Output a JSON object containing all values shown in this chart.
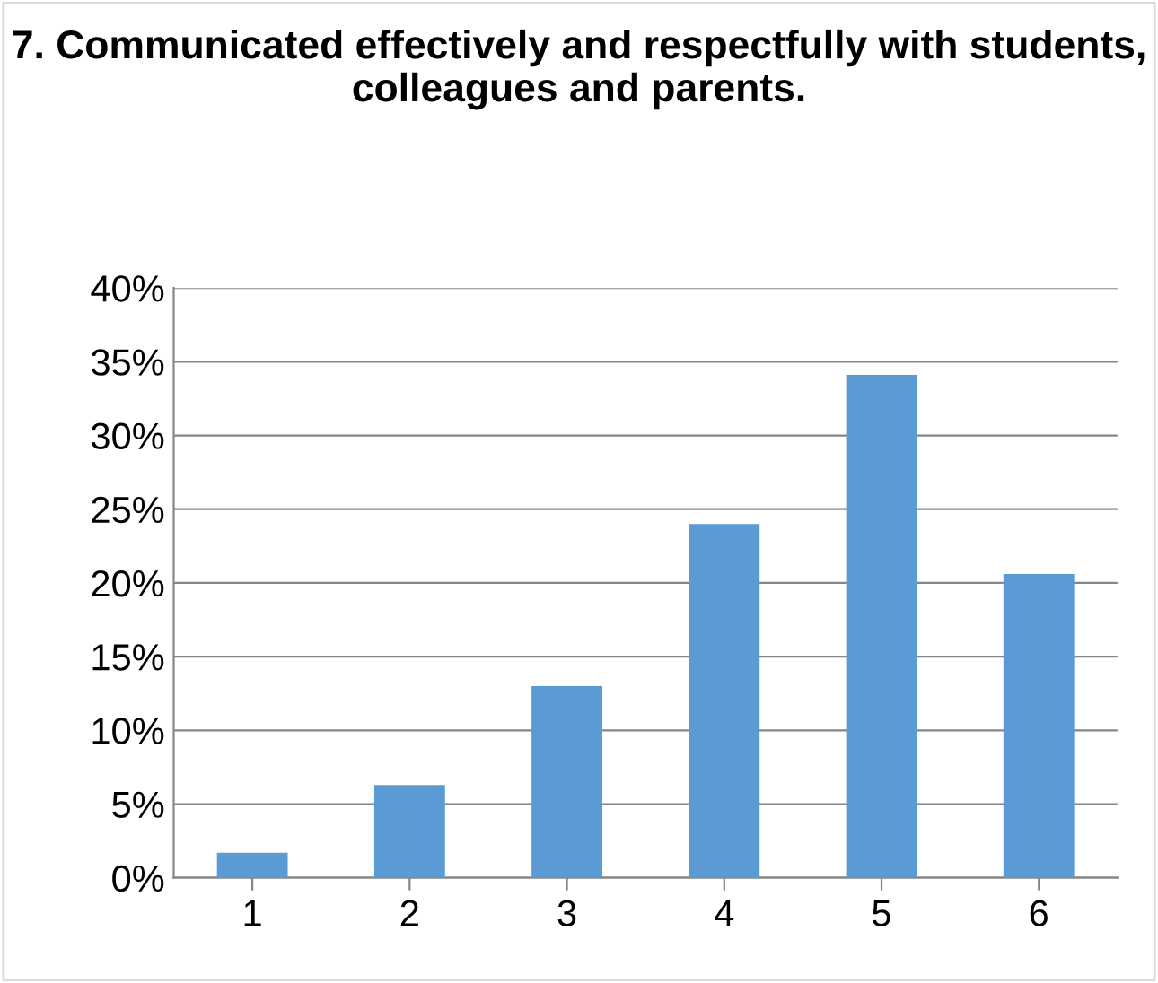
{
  "chart_data": {
    "type": "bar",
    "title": "7. Communicated effectively and respectfully with students, colleagues and parents.",
    "categories": [
      "1",
      "2",
      "3",
      "4",
      "5",
      "6"
    ],
    "values": [
      1.7,
      6.3,
      13.0,
      24.0,
      34.1,
      20.6
    ],
    "color": "#5b9bd5",
    "ylim": [
      0,
      40
    ],
    "yticks": [
      {
        "value": 0,
        "label": "0%"
      },
      {
        "value": 5,
        "label": "5%"
      },
      {
        "value": 10,
        "label": "10%"
      },
      {
        "value": 15,
        "label": "15%"
      },
      {
        "value": 20,
        "label": "20%"
      },
      {
        "value": 25,
        "label": "25%"
      },
      {
        "value": 30,
        "label": "30%"
      },
      {
        "value": 35,
        "label": "35%"
      },
      {
        "value": 40,
        "label": "40%"
      }
    ],
    "grid": "y",
    "legend": false
  }
}
